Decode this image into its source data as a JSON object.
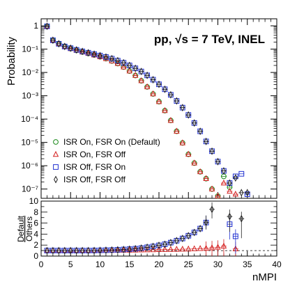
{
  "chart_data": [
    {
      "type": "scatter",
      "yscale": "log",
      "title": "pp, √s = 7 TeV, INEL",
      "ylabel": "Probability",
      "xlim": [
        0,
        40
      ],
      "ylim": [
        4e-08,
        2
      ],
      "y_tick_labels": [
        "10⁻⁷",
        "10⁻⁶",
        "10⁻⁵",
        "10⁻⁴",
        "10⁻³",
        "10⁻²",
        "10⁻¹",
        "1"
      ],
      "legend_position": "lower-left",
      "series": [
        {
          "name": "ISR On, FSR On (Default)",
          "marker": "circle",
          "color": "#1a8a1a",
          "x": [
            1,
            2,
            3,
            4,
            5,
            6,
            7,
            8,
            9,
            10,
            11,
            12,
            13,
            14,
            15,
            16,
            17,
            18,
            19,
            20,
            21,
            22,
            23,
            24,
            25,
            26,
            27,
            28,
            29,
            30,
            31,
            32
          ],
          "y": [
            0.95,
            0.24,
            0.17,
            0.13,
            0.105,
            0.088,
            0.075,
            0.065,
            0.056,
            0.047,
            0.039,
            0.031,
            0.024,
            0.017,
            0.0115,
            0.0074,
            0.0044,
            0.0024,
            0.0012,
            0.00056,
            0.00023,
            8.7e-05,
            3e-05,
            9.5e-06,
            3.1e-06,
            1.3e-06,
            5.5e-07,
            2.8e-07,
            1e-07,
            5e-08,
            3.5e-07,
            1.2e-07
          ]
        },
        {
          "name": "ISR On, FSR Off",
          "marker": "triangle",
          "color": "#d42020",
          "x": [
            1,
            2,
            3,
            4,
            5,
            6,
            7,
            8,
            9,
            10,
            11,
            12,
            13,
            14,
            15,
            16,
            17,
            18,
            19,
            20,
            21,
            22,
            23,
            24,
            25,
            26,
            27,
            28,
            29,
            30,
            31,
            32,
            33
          ],
          "y": [
            0.95,
            0.24,
            0.17,
            0.13,
            0.105,
            0.088,
            0.075,
            0.065,
            0.056,
            0.047,
            0.039,
            0.031,
            0.024,
            0.017,
            0.0115,
            0.0074,
            0.0044,
            0.0024,
            0.0012,
            0.00056,
            0.00023,
            8.7e-05,
            3e-05,
            9.5e-06,
            3.1e-06,
            1.3e-06,
            5.5e-07,
            2.8e-07,
            1e-07,
            5e-08,
            1.8e-07,
            8e-08,
            6e-08
          ]
        },
        {
          "name": "ISR Off, FSR On",
          "marker": "square",
          "color": "#2030d0",
          "x": [
            1,
            2,
            3,
            4,
            5,
            6,
            7,
            8,
            9,
            10,
            11,
            12,
            13,
            14,
            15,
            16,
            17,
            18,
            19,
            20,
            21,
            22,
            23,
            24,
            25,
            26,
            27,
            28,
            29,
            30,
            31,
            32,
            33,
            34,
            35
          ],
          "y": [
            0.95,
            0.24,
            0.17,
            0.13,
            0.11,
            0.093,
            0.08,
            0.07,
            0.061,
            0.053,
            0.046,
            0.039,
            0.032,
            0.026,
            0.02,
            0.015,
            0.011,
            0.0075,
            0.0049,
            0.0031,
            0.0019,
            0.0011,
            0.0006,
            0.00031,
            0.00015,
            6.8e-05,
            3e-05,
            1.1e-05,
            4.2e-06,
            1.5e-06,
            6e-07,
            1.8e-07,
            3.5e-07,
            4.5e-07,
            6e-08
          ]
        },
        {
          "name": "ISR Off, FSR Off",
          "marker": "diamond",
          "color": "#222222",
          "x": [
            1,
            2,
            3,
            4,
            5,
            6,
            7,
            8,
            9,
            10,
            11,
            12,
            13,
            14,
            15,
            16,
            17,
            18,
            19,
            20,
            21,
            22,
            23,
            24,
            25,
            26,
            27,
            28,
            29,
            30,
            31,
            32,
            33,
            34,
            35
          ],
          "y": [
            0.95,
            0.24,
            0.17,
            0.13,
            0.11,
            0.093,
            0.08,
            0.07,
            0.061,
            0.053,
            0.046,
            0.039,
            0.032,
            0.026,
            0.02,
            0.015,
            0.011,
            0.0075,
            0.0049,
            0.0031,
            0.0019,
            0.0011,
            0.0006,
            0.00031,
            0.00015,
            6.8e-05,
            3e-05,
            1.1e-05,
            4.2e-06,
            1.5e-06,
            6e-07,
            1.8e-07,
            3e-07,
            7e-08,
            7e-08
          ]
        }
      ]
    },
    {
      "type": "scatter",
      "xlabel": "nMPI",
      "ylabel": [
        "Default",
        "Others"
      ],
      "xlim": [
        0,
        40
      ],
      "ylim": [
        0,
        10
      ],
      "x_tick_labels": [
        "0",
        "5",
        "10",
        "15",
        "20",
        "25",
        "30",
        "35",
        "40"
      ],
      "y_tick_labels": [
        "0",
        "2",
        "4",
        "6",
        "8",
        "10"
      ],
      "reference_line": 1,
      "series": [
        {
          "name": "ISR On, FSR Off",
          "marker": "triangle",
          "color": "#d42020",
          "x": [
            1,
            2,
            3,
            4,
            5,
            6,
            7,
            8,
            9,
            10,
            11,
            12,
            13,
            14,
            15,
            16,
            17,
            18,
            19,
            20,
            21,
            22,
            23,
            24,
            25,
            26,
            27,
            28,
            29,
            30,
            31,
            33
          ],
          "y": [
            1,
            1,
            1,
            1,
            1,
            1,
            1,
            1,
            1,
            1,
            1,
            1.02,
            1.03,
            1.05,
            1.07,
            1.09,
            1.11,
            1.13,
            1.15,
            1.17,
            1.19,
            1.21,
            1.23,
            1.25,
            1.28,
            1.32,
            1.36,
            1.4,
            1.5,
            1.6,
            1.8,
            1.3
          ]
        },
        {
          "name": "ISR Off, FSR On",
          "marker": "square",
          "color": "#2030d0",
          "x": [
            1,
            2,
            3,
            4,
            5,
            6,
            7,
            8,
            9,
            10,
            11,
            12,
            13,
            14,
            15,
            16,
            17,
            18,
            19,
            20,
            21,
            22,
            23,
            24,
            25,
            26,
            27,
            28,
            32,
            33
          ],
          "y": [
            1,
            1,
            1,
            1,
            1,
            1,
            1,
            1,
            1.02,
            1.04,
            1.07,
            1.1,
            1.14,
            1.2,
            1.26,
            1.34,
            1.45,
            1.6,
            1.75,
            1.95,
            2.15,
            2.45,
            2.8,
            3.2,
            3.7,
            4.3,
            5,
            6.1,
            5.8,
            3.6
          ]
        },
        {
          "name": "ISR Off, FSR Off",
          "marker": "diamond",
          "color": "#222222",
          "x": [
            1,
            2,
            3,
            4,
            5,
            6,
            7,
            8,
            9,
            10,
            11,
            12,
            13,
            14,
            15,
            16,
            17,
            18,
            19,
            20,
            21,
            22,
            23,
            24,
            25,
            26,
            27,
            28,
            29,
            32,
            34
          ],
          "y": [
            1,
            1,
            1,
            1,
            1,
            1,
            1,
            1,
            1.02,
            1.04,
            1.07,
            1.1,
            1.14,
            1.2,
            1.26,
            1.34,
            1.45,
            1.6,
            1.75,
            1.95,
            2.15,
            2.45,
            2.8,
            3.2,
            3.7,
            4.3,
            5,
            6.1,
            8.5,
            7.2,
            6.8
          ]
        }
      ]
    }
  ]
}
